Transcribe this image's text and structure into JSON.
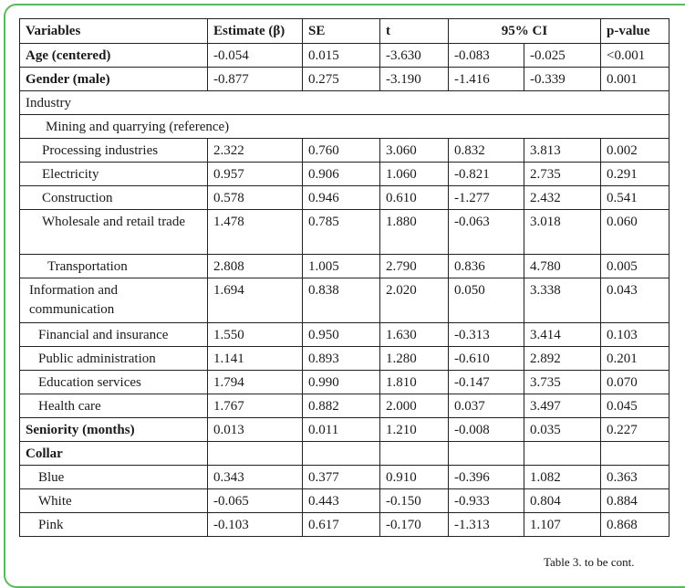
{
  "headers": [
    "Variables",
    "Estimate (β)",
    "SE",
    "t",
    "95% CI",
    "p-value"
  ],
  "rows": [
    {
      "label": "Age (centered)",
      "bold": true,
      "indent": 0,
      "v": [
        "-0.054",
        "0.015",
        "-3.630",
        "-0.083",
        "-0.025",
        "<0.001"
      ]
    },
    {
      "label": "Gender (male)",
      "bold": true,
      "indent": 0,
      "v": [
        "-0.877",
        "0.275",
        "-3.190",
        "-1.416",
        "-0.339",
        "0.001"
      ]
    },
    {
      "label": "Industry",
      "section": true,
      "indent": 0
    },
    {
      "label": "Mining and quarrying (reference)",
      "section": true,
      "indent": 22
    },
    {
      "label": "Processing industries",
      "indent": 18,
      "v": [
        "2.322",
        "0.760",
        "3.060",
        "0.832",
        "3.813",
        "0.002"
      ]
    },
    {
      "label": "Electricity",
      "indent": 18,
      "v": [
        "0.957",
        "0.906",
        "1.060",
        "-0.821",
        "2.735",
        "0.291"
      ]
    },
    {
      "label": "Construction",
      "indent": 18,
      "v": [
        "0.578",
        "0.946",
        "0.610",
        "-1.277",
        "2.432",
        "0.541"
      ]
    },
    {
      "label": "Wholesale and retail trade",
      "indent": 18,
      "tall": true,
      "v": [
        "1.478",
        "0.785",
        "1.880",
        "-0.063",
        "3.018",
        "0.060"
      ]
    },
    {
      "label": "Transportation",
      "indent": 24,
      "v": [
        "2.808",
        "1.005",
        "2.790",
        "0.836",
        "4.780",
        "0.005"
      ]
    },
    {
      "label": "Information and communication",
      "indent": 4,
      "tall": true,
      "v": [
        "1.694",
        "0.838",
        "2.020",
        "0.050",
        "3.338",
        "0.043"
      ]
    },
    {
      "label": "Financial and insurance",
      "indent": 14,
      "v": [
        "1.550",
        "0.950",
        "1.630",
        "-0.313",
        "3.414",
        "0.103"
      ]
    },
    {
      "label": "Public administration",
      "indent": 14,
      "v": [
        "1.141",
        "0.893",
        "1.280",
        "-0.610",
        "2.892",
        "0.201"
      ]
    },
    {
      "label": "Education services",
      "indent": 14,
      "v": [
        "1.794",
        "0.990",
        "1.810",
        "-0.147",
        "3.735",
        "0.070"
      ]
    },
    {
      "label": "Health care",
      "indent": 14,
      "v": [
        "1.767",
        "0.882",
        "2.000",
        "0.037",
        "3.497",
        "0.045"
      ]
    },
    {
      "label": "Seniority (months)",
      "bold": true,
      "indent": 0,
      "v": [
        "0.013",
        "0.011",
        "1.210",
        "-0.008",
        "0.035",
        "0.227"
      ]
    },
    {
      "label": "Collar",
      "bold": true,
      "indent": 0,
      "v": [
        "",
        "",
        "",
        "",
        "",
        ""
      ]
    },
    {
      "label": "Blue",
      "indent": 14,
      "v": [
        "0.343",
        "0.377",
        "0.910",
        "-0.396",
        "1.082",
        "0.363"
      ]
    },
    {
      "label": "White",
      "indent": 14,
      "v": [
        "-0.065",
        "0.443",
        "-0.150",
        "-0.933",
        "0.804",
        "0.884"
      ]
    },
    {
      "label": "Pink",
      "indent": 14,
      "v": [
        "-0.103",
        "0.617",
        "-0.170",
        "-1.313",
        "1.107",
        "0.868"
      ]
    }
  ],
  "footer": "Table 3. to be cont."
}
